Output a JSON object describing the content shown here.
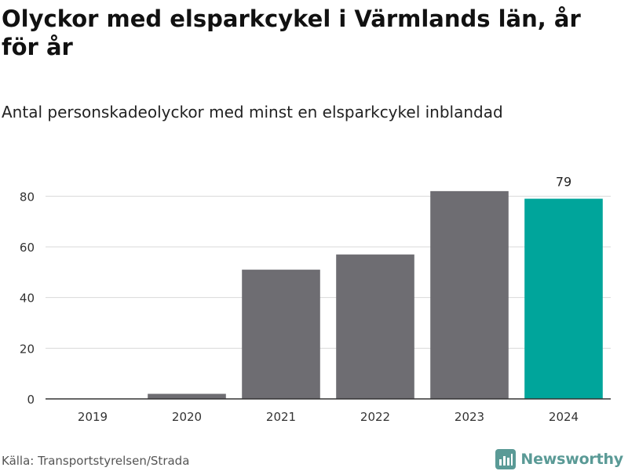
{
  "header": {
    "title": "Olyckor med elsparkcykel i Värmlands län, år för år",
    "subtitle": "Antal personskadeolyckor med minst en elsparkcykel inblandad"
  },
  "footer": {
    "source": "Källa: Transportstyrelsen/Strada",
    "brand": "Newsworthy"
  },
  "icons": {
    "brand_icon": "newsworthy-logo-icon"
  },
  "colors": {
    "bar": "#6e6d72",
    "highlight": "#00a59b",
    "grid": "#d9d9d9",
    "axis": "#333333"
  },
  "chart_data": {
    "type": "bar",
    "title": "Olyckor med elsparkcykel i Värmlands län, år för år",
    "subtitle": "Antal personskadeolyckor med minst en elsparkcykel inblandad",
    "categories": [
      "2019",
      "2020",
      "2021",
      "2022",
      "2023",
      "2024"
    ],
    "values": [
      0,
      2,
      51,
      57,
      82,
      79
    ],
    "highlight_index": 5,
    "data_labels": [
      {
        "index": 5,
        "text": "79"
      }
    ],
    "xlabel": "",
    "ylabel": "",
    "ylim": [
      0,
      90
    ],
    "yticks": [
      0,
      20,
      40,
      60,
      80
    ],
    "grid": true,
    "legend": "none"
  }
}
